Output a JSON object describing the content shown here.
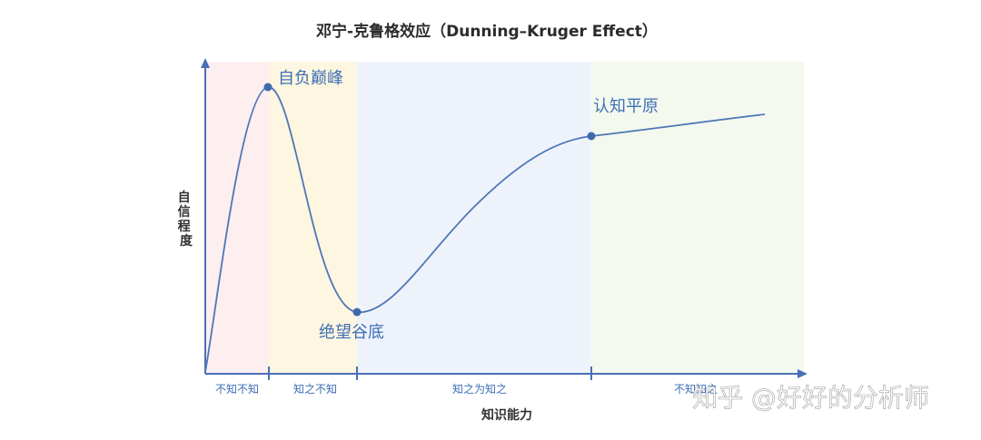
{
  "title": "邓宁-克鲁格效应（Dunning–Kruger Effect）",
  "y_axis_label": "自信程度",
  "x_axis_label": "知识能力",
  "stages": [
    {
      "label": "不知不知",
      "color": "#fdeff0"
    },
    {
      "label": "知之不知",
      "color": "#fdf6e0"
    },
    {
      "label": "知之为知之",
      "color": "#eef3fb"
    },
    {
      "label": "不知知之",
      "color": "#f3f9ee"
    }
  ],
  "points": [
    {
      "label": "自负巅峰"
    },
    {
      "label": "绝望谷底"
    },
    {
      "label": "认知平原"
    }
  ],
  "watermark": "知乎 @好好的分析师",
  "colors": {
    "axis": "#4a6fb5",
    "curve": "#4e77b8",
    "point": "#3e6aad"
  }
}
